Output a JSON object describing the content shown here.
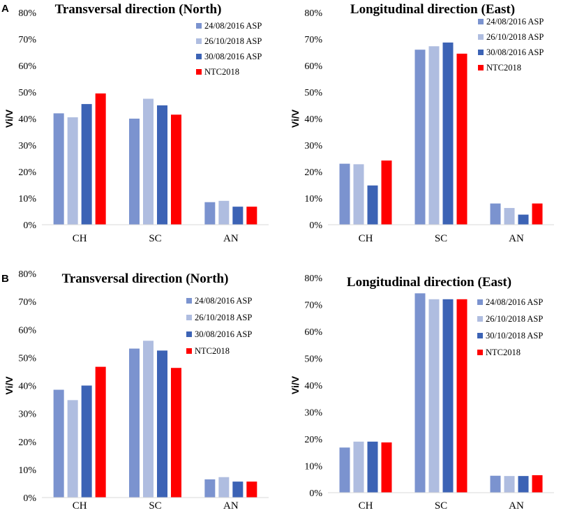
{
  "panels": [
    {
      "label": "A"
    },
    {
      "label": "B"
    }
  ],
  "chart_data": [
    {
      "type": "bar",
      "panel": "A",
      "title": "Transversal direction (North)",
      "xlabel": "",
      "ylabel": "Vi/V",
      "ylim": [
        0,
        0.8
      ],
      "yticks": [
        "0%",
        "10%",
        "20%",
        "30%",
        "40%",
        "50%",
        "60%",
        "70%",
        "80%"
      ],
      "categories": [
        "CH",
        "SC",
        "AN"
      ],
      "legend_position": "top-right",
      "series": [
        {
          "name": "24/08/2016 ASP",
          "color": "#7b93cf",
          "values": [
            0.42,
            0.4,
            0.085
          ]
        },
        {
          "name": "26/10/2018 ASP",
          "color": "#afbde0",
          "values": [
            0.405,
            0.475,
            0.09
          ]
        },
        {
          "name": "30/08/2016 ASP",
          "color": "#3c63b5",
          "values": [
            0.455,
            0.45,
            0.068
          ]
        },
        {
          "name": "NTC2018",
          "color": "#ff0000",
          "values": [
            0.495,
            0.415,
            0.068
          ]
        }
      ]
    },
    {
      "type": "bar",
      "panel": "A",
      "title": "Longitudinal direction (East)",
      "xlabel": "",
      "ylabel": "Vi/V",
      "ylim": [
        0,
        0.8
      ],
      "yticks": [
        "0%",
        "10%",
        "20%",
        "30%",
        "40%",
        "50%",
        "60%",
        "70%",
        "80%"
      ],
      "categories": [
        "CH",
        "SC",
        "AN"
      ],
      "legend_position": "top-right",
      "series": [
        {
          "name": "24/08/2016 ASP",
          "color": "#7b93cf",
          "values": [
            0.23,
            0.66,
            0.08
          ]
        },
        {
          "name": "26/10/2018 ASP",
          "color": "#afbde0",
          "values": [
            0.228,
            0.673,
            0.063
          ]
        },
        {
          "name": "30/08/2016 ASP",
          "color": "#3c63b5",
          "values": [
            0.148,
            0.687,
            0.038
          ]
        },
        {
          "name": "NTC2018",
          "color": "#ff0000",
          "values": [
            0.242,
            0.645,
            0.08
          ]
        }
      ]
    },
    {
      "type": "bar",
      "panel": "B",
      "title": "Transversal direction (North)",
      "xlabel": "",
      "ylabel": "Vi/V",
      "ylim": [
        0,
        0.8
      ],
      "yticks": [
        "0%",
        "10%",
        "20%",
        "30%",
        "40%",
        "50%",
        "60%",
        "70%",
        "80%"
      ],
      "categories": [
        "CH",
        "SC",
        "AN"
      ],
      "legend_position": "top-right",
      "series": [
        {
          "name": "24/08/2016 ASP",
          "color": "#7b93cf",
          "values": [
            0.385,
            0.532,
            0.065
          ]
        },
        {
          "name": "26/10/2018  ASP",
          "color": "#afbde0",
          "values": [
            0.348,
            0.56,
            0.073
          ]
        },
        {
          "name": "30/08/2016  ASP",
          "color": "#3c63b5",
          "values": [
            0.4,
            0.525,
            0.057
          ]
        },
        {
          "name": "NTC2018",
          "color": "#ff0000",
          "values": [
            0.467,
            0.463,
            0.057
          ]
        }
      ]
    },
    {
      "type": "bar",
      "panel": "B",
      "title": "Longitudinal direction (East)",
      "xlabel": "",
      "ylabel": "Vi/V",
      "ylim": [
        0,
        0.8
      ],
      "yticks": [
        "0%",
        "10%",
        "20%",
        "30%",
        "40%",
        "50%",
        "60%",
        "70%",
        "80%"
      ],
      "categories": [
        "CH",
        "SC",
        "AN"
      ],
      "legend_position": "top-right",
      "series": [
        {
          "name": "24/08/2016 ASP",
          "color": "#7b93cf",
          "values": [
            0.168,
            0.742,
            0.063
          ]
        },
        {
          "name": "26/10/2018 ASP",
          "color": "#afbde0",
          "values": [
            0.19,
            0.72,
            0.062
          ]
        },
        {
          "name": "30/10/2018 ASP",
          "color": "#3c63b5",
          "values": [
            0.19,
            0.72,
            0.062
          ]
        },
        {
          "name": "NTC2018",
          "color": "#ff0000",
          "values": [
            0.187,
            0.72,
            0.065
          ]
        }
      ]
    }
  ]
}
